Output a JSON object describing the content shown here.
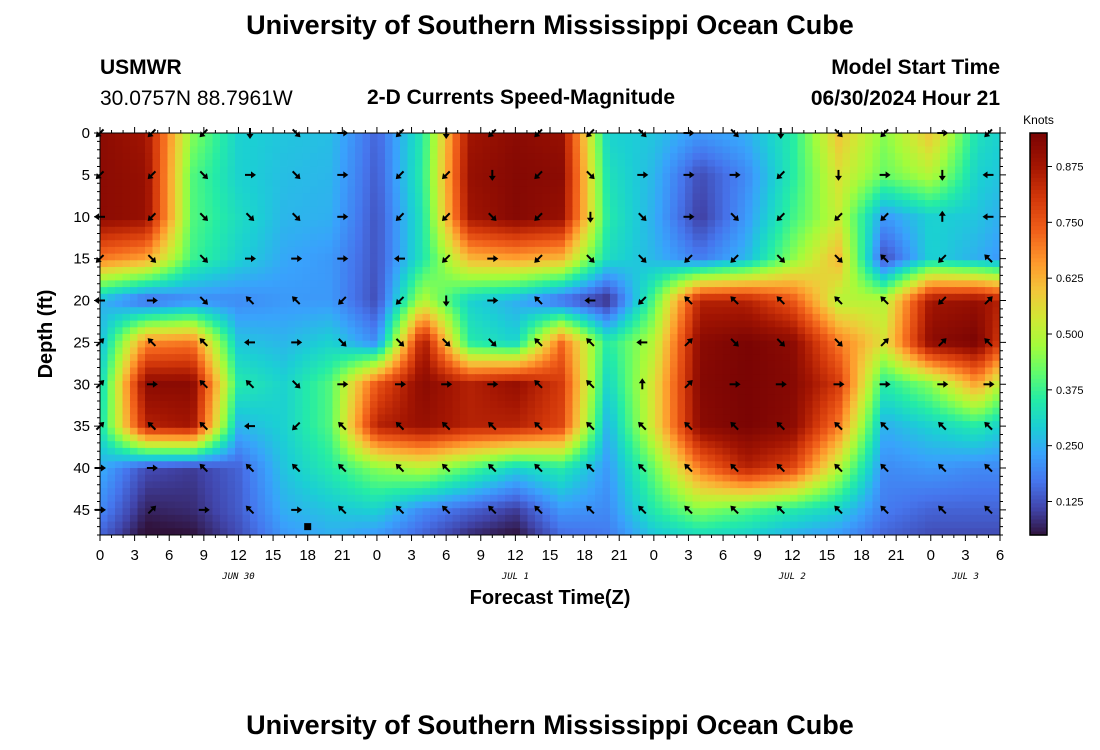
{
  "header": {
    "title": "University of Southern Mississippi Ocean Cube",
    "bottom_title": "University of Southern Mississippi Ocean Cube",
    "station": "USMWR",
    "coords": "30.0757N  88.7961W",
    "plot_title": "2-D Currents Speed-Magnitude",
    "model_label": "Model Start Time",
    "model_time": "06/30/2024 Hour 21"
  },
  "chart_data": {
    "type": "heatmap",
    "title": "2-D Currents Speed-Magnitude",
    "xlabel": "Forecast Time(Z)",
    "ylabel": "Depth (ft)",
    "x_ticks": [
      "0",
      "3",
      "6",
      "9",
      "12",
      "15",
      "18",
      "21",
      "0",
      "3",
      "6",
      "9",
      "12",
      "15",
      "18",
      "21",
      "0",
      "3",
      "6",
      "9",
      "12",
      "15",
      "18",
      "21",
      "0",
      "3",
      "6"
    ],
    "x_hours": [
      0,
      3,
      6,
      9,
      12,
      15,
      18,
      21,
      24,
      27,
      30,
      33,
      36,
      39,
      42,
      45,
      48,
      51,
      54,
      57,
      60,
      63,
      66,
      69,
      72,
      75,
      78
    ],
    "x_range": [
      0,
      78
    ],
    "date_labels": [
      {
        "text": "JUN 30",
        "hour": 12
      },
      {
        "text": "JUL 1",
        "hour": 36
      },
      {
        "text": "JUL 2",
        "hour": 60
      },
      {
        "text": "JUL 3",
        "hour": 75
      }
    ],
    "y_ticks": [
      "0",
      "5",
      "10",
      "15",
      "20",
      "25",
      "30",
      "35",
      "40",
      "45"
    ],
    "y_values": [
      0,
      5,
      10,
      15,
      20,
      25,
      30,
      35,
      40,
      45
    ],
    "y_range": [
      0,
      48
    ],
    "colorbar": {
      "label": "Knots",
      "ticks": [
        "0.875",
        "0.750",
        "0.625",
        "0.500",
        "0.375",
        "0.250",
        "0.125"
      ],
      "tick_values": [
        0.875,
        0.75,
        0.625,
        0.5,
        0.375,
        0.25,
        0.125
      ],
      "range": [
        0.05,
        0.95
      ]
    },
    "speed_grid_hours": [
      0,
      4,
      8,
      12,
      16,
      20,
      24,
      28,
      32,
      36,
      40,
      44,
      48,
      52,
      56,
      60,
      64,
      68,
      72,
      76,
      78
    ],
    "speed_grid_depths": [
      0,
      5,
      10,
      15,
      20,
      25,
      30,
      35,
      40,
      45,
      48
    ],
    "speed": [
      [
        0.92,
        0.88,
        0.45,
        0.3,
        0.28,
        0.27,
        0.15,
        0.35,
        0.88,
        0.92,
        0.9,
        0.3,
        0.28,
        0.22,
        0.25,
        0.35,
        0.6,
        0.45,
        0.6,
        0.33,
        0.3
      ],
      [
        0.92,
        0.9,
        0.4,
        0.3,
        0.27,
        0.26,
        0.14,
        0.36,
        0.9,
        0.93,
        0.92,
        0.33,
        0.26,
        0.12,
        0.2,
        0.35,
        0.55,
        0.42,
        0.5,
        0.3,
        0.28
      ],
      [
        0.92,
        0.9,
        0.4,
        0.32,
        0.26,
        0.25,
        0.13,
        0.34,
        0.88,
        0.93,
        0.9,
        0.35,
        0.25,
        0.1,
        0.22,
        0.38,
        0.52,
        0.22,
        0.3,
        0.28,
        0.25
      ],
      [
        0.7,
        0.65,
        0.38,
        0.3,
        0.24,
        0.22,
        0.13,
        0.34,
        0.62,
        0.65,
        0.62,
        0.32,
        0.26,
        0.18,
        0.26,
        0.45,
        0.62,
        0.12,
        0.3,
        0.25,
        0.22
      ],
      [
        0.26,
        0.15,
        0.2,
        0.2,
        0.22,
        0.22,
        0.12,
        0.5,
        0.3,
        0.25,
        0.15,
        0.08,
        0.4,
        0.85,
        0.85,
        0.75,
        0.5,
        0.5,
        0.88,
        0.9,
        0.85
      ],
      [
        0.26,
        0.68,
        0.7,
        0.28,
        0.26,
        0.3,
        0.2,
        0.88,
        0.35,
        0.3,
        0.72,
        0.35,
        0.5,
        0.92,
        0.95,
        0.92,
        0.7,
        0.55,
        0.92,
        0.95,
        0.8
      ],
      [
        0.3,
        0.92,
        0.92,
        0.35,
        0.3,
        0.4,
        0.75,
        0.92,
        0.85,
        0.9,
        0.8,
        0.3,
        0.55,
        0.93,
        0.95,
        0.93,
        0.8,
        0.35,
        0.45,
        0.65,
        0.5
      ],
      [
        0.32,
        0.85,
        0.88,
        0.26,
        0.3,
        0.4,
        0.85,
        0.9,
        0.85,
        0.85,
        0.78,
        0.25,
        0.55,
        0.92,
        0.95,
        0.92,
        0.7,
        0.25,
        0.3,
        0.35,
        0.3
      ],
      [
        0.25,
        0.12,
        0.1,
        0.15,
        0.28,
        0.35,
        0.45,
        0.5,
        0.4,
        0.3,
        0.35,
        0.22,
        0.42,
        0.7,
        0.85,
        0.78,
        0.5,
        0.2,
        0.22,
        0.2,
        0.2
      ],
      [
        0.2,
        0.07,
        0.08,
        0.14,
        0.25,
        0.28,
        0.3,
        0.2,
        0.15,
        0.1,
        0.22,
        0.2,
        0.35,
        0.45,
        0.4,
        0.35,
        0.3,
        0.18,
        0.15,
        0.15,
        0.15
      ],
      [
        0.15,
        0.04,
        0.05,
        0.12,
        0.22,
        0.25,
        0.22,
        0.15,
        0.08,
        0.05,
        0.16,
        0.18,
        0.28,
        0.32,
        0.3,
        0.25,
        0.22,
        0.15,
        0.12,
        0.12,
        0.12
      ]
    ],
    "arrow_grid_hours": [
      0,
      4.5,
      9,
      13,
      17,
      21,
      26,
      30,
      34,
      38,
      42.5,
      47,
      51,
      55,
      59,
      64,
      68,
      73,
      77
    ],
    "arrow_grid_depths": [
      0,
      5,
      10,
      15,
      20,
      25,
      30,
      35,
      40,
      45
    ],
    "arrow_directions_deg": [
      [
        225,
        225,
        225,
        270,
        315,
        0,
        225,
        270,
        225,
        225,
        225,
        315,
        0,
        315,
        270,
        315,
        225,
        0,
        225
      ],
      [
        225,
        225,
        315,
        0,
        315,
        0,
        225,
        225,
        270,
        225,
        315,
        0,
        0,
        0,
        225,
        270,
        0,
        270,
        180
      ],
      [
        180,
        225,
        315,
        315,
        315,
        0,
        225,
        225,
        315,
        225,
        270,
        315,
        0,
        315,
        225,
        225,
        225,
        90,
        180
      ],
      [
        225,
        315,
        315,
        0,
        0,
        0,
        180,
        225,
        0,
        225,
        315,
        315,
        225,
        225,
        315,
        315,
        135,
        225,
        135
      ],
      [
        180,
        0,
        315,
        135,
        135,
        225,
        225,
        270,
        0,
        135,
        180,
        225,
        135,
        135,
        135,
        135,
        135,
        225,
        45
      ],
      [
        45,
        135,
        135,
        180,
        0,
        315,
        315,
        315,
        315,
        135,
        135,
        180,
        45,
        315,
        315,
        315,
        45,
        45,
        135
      ],
      [
        45,
        0,
        135,
        135,
        315,
        0,
        0,
        0,
        0,
        135,
        135,
        90,
        45,
        0,
        0,
        0,
        0,
        0,
        0
      ],
      [
        45,
        135,
        135,
        180,
        225,
        135,
        135,
        135,
        135,
        135,
        135,
        135,
        135,
        135,
        135,
        135,
        135,
        135,
        135
      ],
      [
        0,
        0,
        135,
        135,
        135,
        135,
        135,
        135,
        135,
        135,
        135,
        135,
        135,
        135,
        135,
        135,
        135,
        135,
        135
      ],
      [
        0,
        45,
        0,
        135,
        0,
        135,
        135,
        135,
        135,
        135,
        135,
        135,
        135,
        135,
        135,
        135,
        135,
        135,
        135
      ]
    ],
    "marker": {
      "hour": 18,
      "depth": 47
    }
  }
}
